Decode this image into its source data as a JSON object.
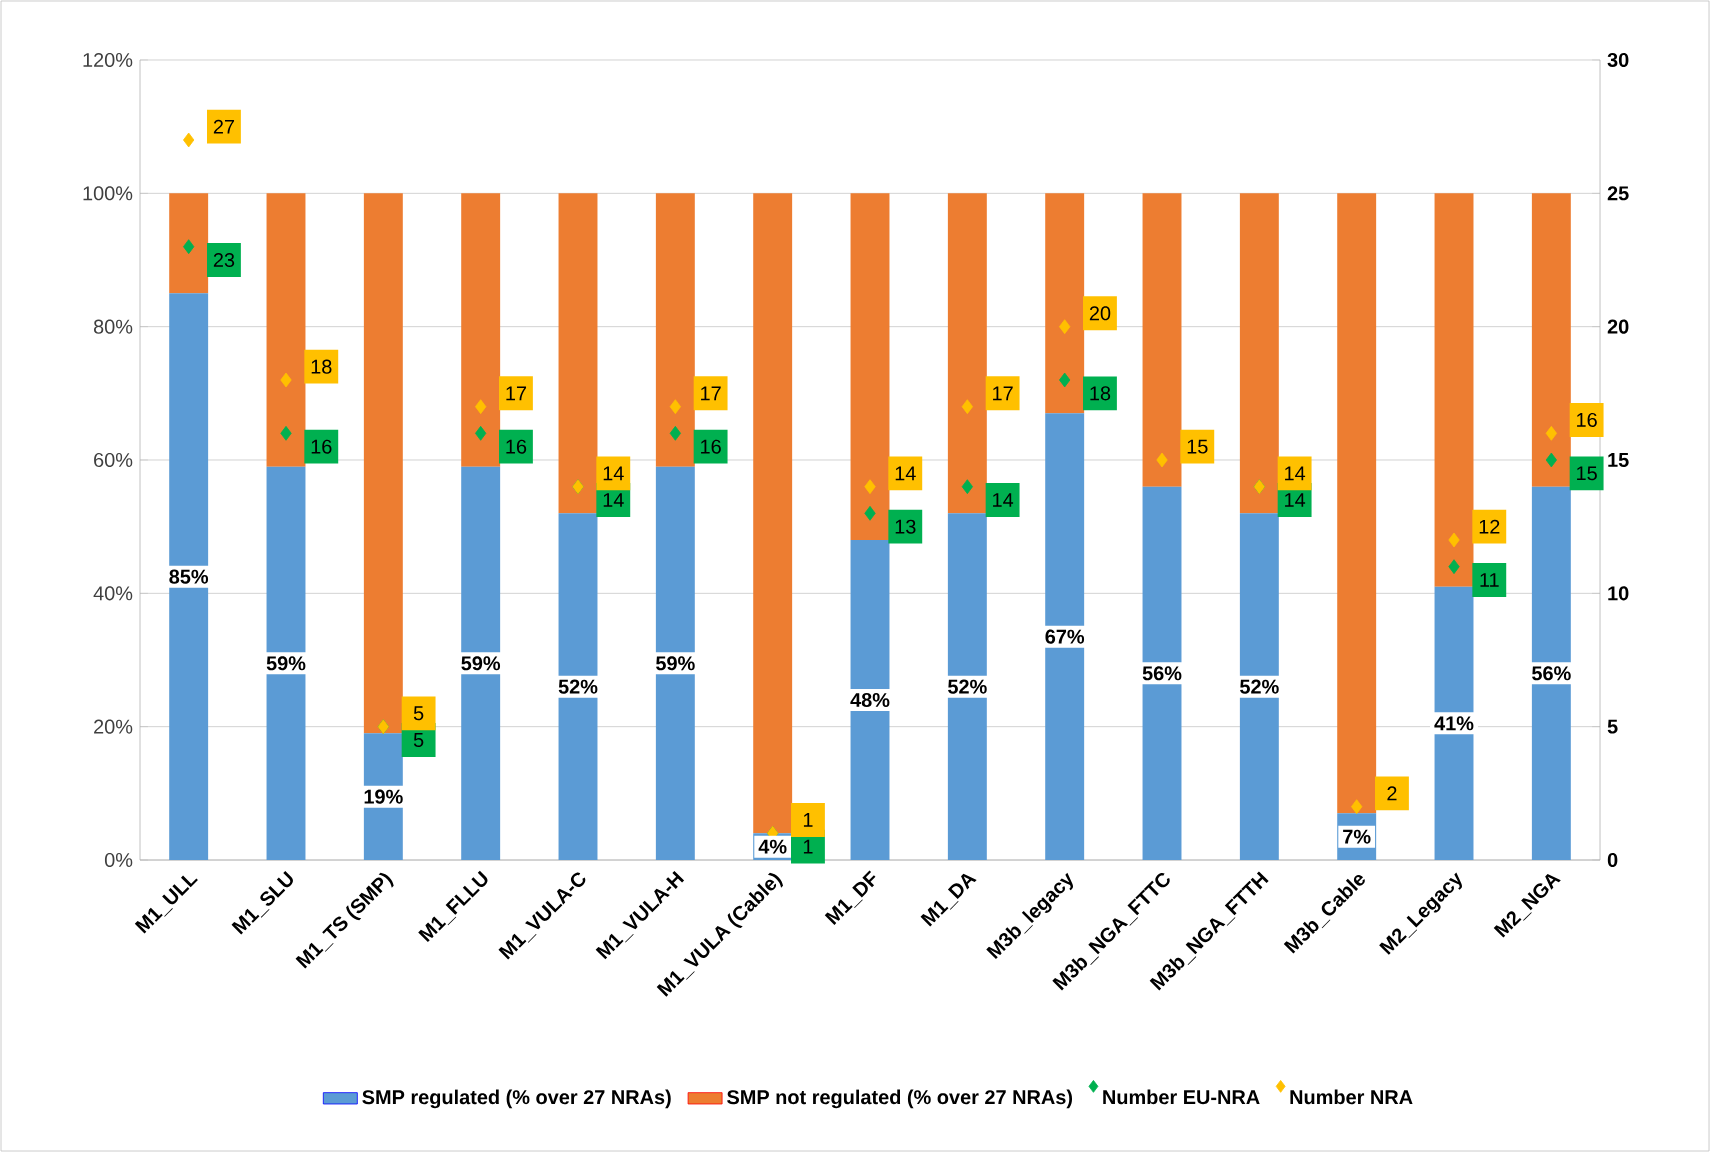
{
  "chart_data": {
    "type": "bar",
    "stacked": true,
    "categories": [
      "M1_ULL",
      "M1_SLU",
      "M1_TS (SMP)",
      "M1_FLLU",
      "M1_VULA-C",
      "M1_VULA-H",
      "M1_VULA (Cable)",
      "M1_DF",
      "M1_DA",
      "M3b_legacy",
      "M3b_NGA_FTTC",
      "M3b_NGA_FTTH",
      "M3b_Cable",
      "M2_Legacy",
      "M2_NGA"
    ],
    "series": [
      {
        "name": "SMP regulated (% over 27 NRAs)",
        "color": "#5b9bd5",
        "values": [
          85,
          59,
          19,
          59,
          52,
          59,
          4,
          48,
          52,
          67,
          56,
          52,
          7,
          41,
          56
        ],
        "value_labels": [
          "85%",
          "59%",
          "19%",
          "59%",
          "52%",
          "59%",
          "4%",
          "48%",
          "52%",
          "67%",
          "56%",
          "52%",
          "7%",
          "41%",
          "56%"
        ]
      },
      {
        "name": "SMP not regulated (% over 27 NRAs)",
        "color": "#ed7d31",
        "values": [
          15,
          41,
          81,
          41,
          48,
          41,
          96,
          52,
          48,
          33,
          44,
          48,
          93,
          59,
          44
        ]
      },
      {
        "name": "Number  EU-NRA",
        "color": "#00b050",
        "type": "scatter",
        "axis": "y2",
        "values": [
          23,
          16,
          5,
          16,
          14,
          16,
          1,
          13,
          14,
          18,
          null,
          14,
          null,
          11,
          15
        ],
        "value_labels": [
          "23",
          "16",
          "5",
          "16",
          "14",
          "16",
          "1",
          "13",
          "14",
          "18",
          null,
          "14",
          null,
          "11",
          "15"
        ]
      },
      {
        "name": "Number NRA",
        "color": "#ffc000",
        "type": "scatter",
        "axis": "y2",
        "values": [
          27,
          18,
          5,
          17,
          14,
          17,
          1,
          14,
          17,
          20,
          15,
          14,
          2,
          12,
          16
        ],
        "value_labels": [
          "27",
          "18",
          "5",
          "17",
          "14",
          "17",
          "1",
          "14",
          "17",
          "20",
          "15",
          "14",
          "2",
          "12",
          "16"
        ]
      }
    ],
    "ylim": [
      0,
      120
    ],
    "yticks": [
      {
        "value": 0,
        "label": "0%"
      },
      {
        "value": 20,
        "label": "20%"
      },
      {
        "value": 40,
        "label": "40%"
      },
      {
        "value": 60,
        "label": "60%"
      },
      {
        "value": 80,
        "label": "80%"
      },
      {
        "value": 100,
        "label": "100%"
      },
      {
        "value": 120,
        "label": "120%"
      }
    ],
    "y2lim": [
      0,
      30
    ],
    "y2ticks": [
      0,
      5,
      10,
      15,
      20,
      25,
      30
    ],
    "grid": "y",
    "legend": "bottom",
    "marker": "diamond"
  }
}
